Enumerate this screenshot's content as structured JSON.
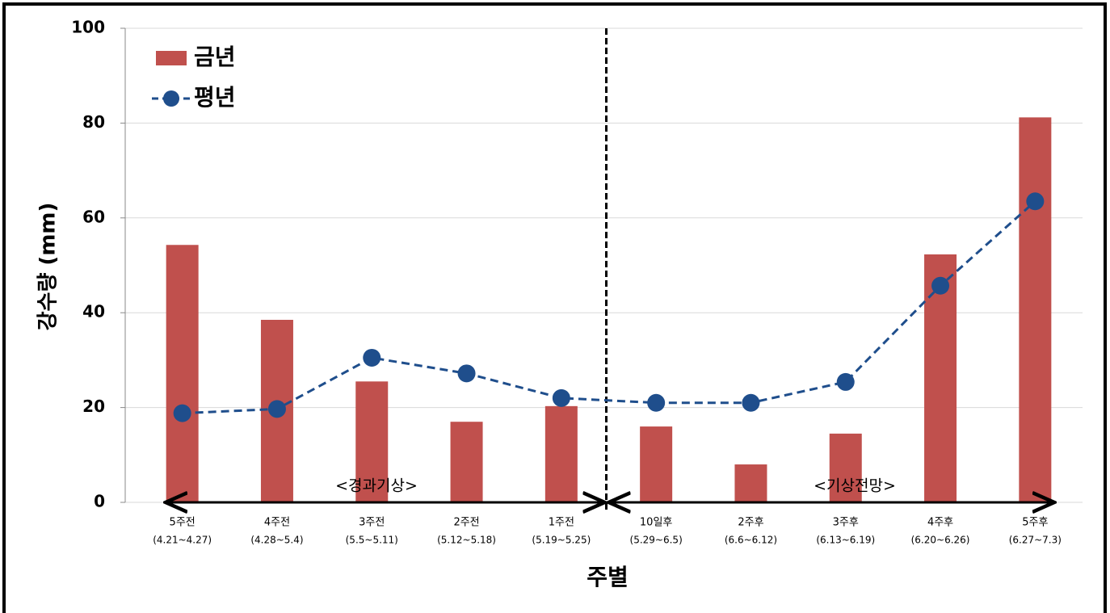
{
  "chart_data": {
    "type": "combo",
    "x_label": "주별",
    "y_label": "강수량 (mm)",
    "categories": [
      "5주전",
      "4주전",
      "3주전",
      "2주전",
      "1주전",
      "10일후",
      "2주후",
      "3주후",
      "4주후",
      "5주후"
    ],
    "category_periods": [
      "(4.21~4.27)",
      "(4.28~5.4)",
      "(5.5~5.11)",
      "(5.12~5.18)",
      "(5.19~5.25)",
      "(5.29~6.5)",
      "(6.6~6.12)",
      "(6.13~6.19)",
      "(6.20~6.26)",
      "(6.27~7.3)"
    ],
    "series": [
      {
        "name": "금년",
        "type": "bar",
        "color": "#c0504d",
        "values": [
          54.3,
          38.5,
          25.5,
          17,
          20.3,
          16,
          8,
          14.5,
          52.3,
          81.2
        ]
      },
      {
        "name": "평년",
        "type": "line",
        "color": "#1f4e8c",
        "values": [
          18.8,
          19.7,
          30.5,
          27.2,
          22,
          21,
          21,
          25.4,
          45.7,
          63.5
        ]
      }
    ],
    "annotations": [
      "<경과기상>",
      "<기상전망>"
    ],
    "ylim": [
      0,
      100
    ],
    "yticks": [
      0,
      20,
      40,
      60,
      80,
      100
    ],
    "grid": true,
    "legend": "upper-left"
  }
}
